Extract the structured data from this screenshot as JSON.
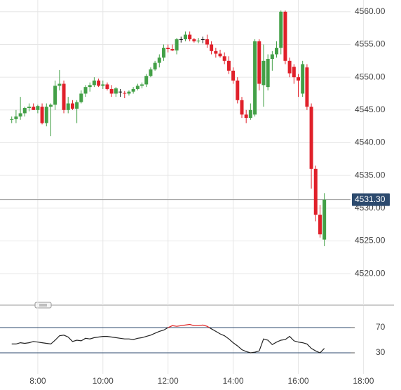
{
  "chart_data": [
    {
      "type": "candlestick",
      "x": [
        7.2,
        7.333,
        7.467,
        7.6,
        7.733,
        7.867,
        8.0,
        8.133,
        8.267,
        8.4,
        8.533,
        8.667,
        8.8,
        8.933,
        9.067,
        9.2,
        9.333,
        9.467,
        9.6,
        9.733,
        9.867,
        10.0,
        10.133,
        10.267,
        10.4,
        10.533,
        10.667,
        10.8,
        10.933,
        11.067,
        11.2,
        11.333,
        11.467,
        11.6,
        11.733,
        11.867,
        12.0,
        12.133,
        12.267,
        12.4,
        12.533,
        12.667,
        12.8,
        12.933,
        13.067,
        13.2,
        13.333,
        13.467,
        13.6,
        13.733,
        13.867,
        14.0,
        14.133,
        14.267,
        14.4,
        14.533,
        14.667,
        14.8,
        14.933,
        15.067,
        15.2,
        15.333,
        15.467,
        15.6,
        15.733,
        15.867,
        16.0,
        16.133,
        16.267,
        16.4,
        16.533,
        16.667,
        16.8
      ],
      "open": [
        4543.5,
        4543.6,
        4544,
        4544.5,
        4545.3,
        4545.5,
        4545,
        4545.5,
        4543,
        4545.5,
        4545.8,
        4548.7,
        4549,
        4545,
        4546,
        4545.2,
        4546.2,
        4547.5,
        4548.5,
        4548.8,
        4549.5,
        4548.7,
        4548.9,
        4548.2,
        4547.5,
        4547.8,
        4547.6,
        4547.5,
        4547.8,
        4548.2,
        4548.7,
        4548.9,
        4550.2,
        4551.2,
        4552.2,
        4553,
        4554.5,
        4554.3,
        4554.1,
        4555.8,
        4555.8,
        4556.5,
        4555.8,
        4555.5,
        4555.8,
        4555.8,
        4555,
        4554,
        4553.6,
        4553.2,
        4552.5,
        4551,
        4549.5,
        4546.5,
        4544.3,
        4543.8,
        4544.3,
        4555.5,
        4548.8,
        4548.5,
        4552.8,
        4553.5,
        4554.5,
        4560,
        4552.5,
        4551.6,
        4550,
        4547.5,
        4551.5,
        4545.5,
        4536,
        4529,
        4525.2
      ],
      "high": [
        4544,
        4545,
        4547,
        4545.5,
        4546,
        4546,
        4545.8,
        4546,
        4546,
        4546,
        4549.5,
        4551.1,
        4549.5,
        4547,
        4546.5,
        4546.5,
        4548,
        4548.8,
        4549.2,
        4550,
        4549.8,
        4549.5,
        4549.2,
        4548.8,
        4548.5,
        4548.2,
        4547.9,
        4548,
        4548.5,
        4549,
        4549.2,
        4550.5,
        4551.5,
        4552.5,
        4553.5,
        4555,
        4555,
        4555,
        4556,
        4556.2,
        4557,
        4557,
        4556,
        4556,
        4556.2,
        4556.5,
        4555.5,
        4554.5,
        4554.2,
        4553.8,
        4553.2,
        4551.5,
        4550,
        4547,
        4545,
        4546,
        4555.8,
        4555.8,
        4555,
        4553.5,
        4554,
        4555.5,
        4560.2,
        4560.2,
        4553,
        4552,
        4550.5,
        4552.5,
        4552,
        4546,
        4536.5,
        4530.5,
        4532.3
      ],
      "low": [
        4543,
        4543,
        4543.5,
        4544,
        4544.8,
        4545,
        4544.5,
        4542.8,
        4542.5,
        4541,
        4545,
        4548,
        4544.5,
        4544.5,
        4545,
        4543,
        4546,
        4547,
        4547.8,
        4548.5,
        4548.5,
        4548.2,
        4548,
        4547,
        4547,
        4547,
        4546.8,
        4547.2,
        4547.5,
        4548,
        4548.3,
        4548.5,
        4550,
        4551,
        4551.5,
        4552.5,
        4553.8,
        4554,
        4553.5,
        4555.3,
        4555.5,
        4555.5,
        4555.3,
        4555.2,
        4555.2,
        4554.5,
        4553.5,
        4553,
        4553,
        4552,
        4550.5,
        4549,
        4546,
        4543.8,
        4543,
        4543.5,
        4544,
        4548,
        4545.5,
        4548,
        4551,
        4553,
        4553.5,
        4552,
        4550,
        4549,
        4547,
        4547,
        4545,
        4533,
        4528,
        4525.5,
        4524.2
      ],
      "close": [
        4543.6,
        4544,
        4544.5,
        4545.3,
        4545.5,
        4545,
        4545.6,
        4543,
        4545.5,
        4545.8,
        4548.7,
        4549,
        4545,
        4546,
        4545.2,
        4546.2,
        4547.5,
        4548.5,
        4548.8,
        4549.5,
        4548.7,
        4548.9,
        4548.2,
        4547.5,
        4548.3,
        4547.8,
        4547.5,
        4547.8,
        4548.2,
        4548.7,
        4548.9,
        4550.2,
        4551.2,
        4552.2,
        4553,
        4554.5,
        4554.3,
        4554.1,
        4555.8,
        4555.8,
        4556.5,
        4555.8,
        4555.5,
        4555.6,
        4555.8,
        4555,
        4554,
        4553.6,
        4553.2,
        4552.5,
        4551,
        4549.5,
        4546.5,
        4544.3,
        4543.8,
        4545,
        4555.5,
        4549,
        4552.5,
        4552.8,
        4553.5,
        4554.5,
        4560,
        4552.5,
        4550.6,
        4550,
        4549.5,
        4552,
        4545.5,
        4536,
        4529,
        4526,
        4531.3
      ],
      "up_color": "#43a047",
      "down_color": "#e0202a",
      "flat_color": "#111111",
      "xlim": [
        6.84,
        18.96
      ],
      "xticks": [
        {
          "value": 8,
          "label": "8:00"
        },
        {
          "value": 10,
          "label": "10:00"
        },
        {
          "value": 12,
          "label": "12:00"
        },
        {
          "value": 14,
          "label": "14:00"
        },
        {
          "value": 16,
          "label": "16:00"
        },
        {
          "value": 18,
          "label": "18:00"
        }
      ],
      "ylim": [
        4516.8,
        4561.8
      ],
      "yticks": [
        {
          "value": 4520,
          "label": "4520.00"
        },
        {
          "value": 4525,
          "label": "4525.00"
        },
        {
          "value": 4530,
          "label": "4530.00"
        },
        {
          "value": 4535,
          "label": "4535.00"
        },
        {
          "value": 4540,
          "label": "4540.00"
        },
        {
          "value": 4545,
          "label": "4545.00"
        },
        {
          "value": 4550,
          "label": "4550.00"
        },
        {
          "value": 4555,
          "label": "4555.00"
        },
        {
          "value": 4560,
          "label": "4560.00"
        }
      ],
      "last_price": {
        "value": 4531.3,
        "label": "4531.30"
      },
      "grid": true
    },
    {
      "type": "line",
      "values": [
        44,
        44,
        46,
        45,
        46,
        48,
        47,
        46,
        45,
        44,
        50,
        57,
        58,
        55,
        48,
        50,
        49,
        53,
        52,
        54,
        55,
        56,
        56,
        55,
        54,
        53,
        52,
        52,
        51,
        53,
        54,
        56,
        58,
        61,
        64,
        66,
        70,
        73,
        72,
        73,
        74,
        75,
        73,
        73,
        74,
        72,
        68,
        64,
        60,
        57,
        52,
        46,
        41,
        35,
        32,
        30,
        31,
        33,
        52,
        50,
        43,
        47,
        50,
        51,
        56,
        49,
        47,
        46,
        44,
        37,
        33,
        30,
        37
      ],
      "color": "#222222",
      "above_color": "#e02020",
      "level_color": "#2c4a6e",
      "ylim": [
        0,
        100
      ],
      "yticks": [
        30,
        70
      ]
    }
  ]
}
